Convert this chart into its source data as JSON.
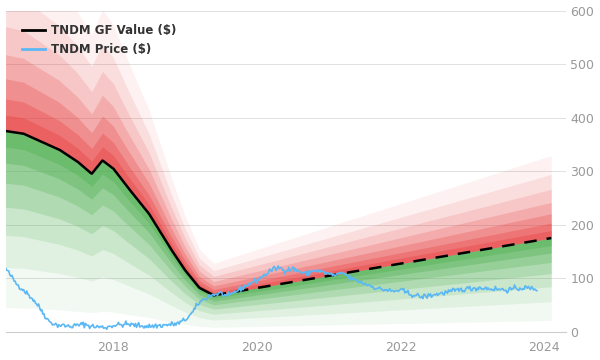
{
  "legend_labels": [
    "TNDM GF Value ($)",
    "TNDM Price ($)"
  ],
  "gf_line_color": "#000000",
  "gf_dashed_color": "#000000",
  "price_line_color": "#5bb8f5",
  "background_color": "#ffffff",
  "ylim": [
    0,
    600
  ],
  "yticks": [
    0,
    100,
    200,
    300,
    400,
    500,
    600
  ],
  "x_start_year": 2016.5,
  "x_end_year": 2024.3,
  "xtick_years": [
    2018,
    2020,
    2022,
    2024
  ],
  "red_color": "#e84040",
  "green_color": "#4caf50",
  "num_bands": 7,
  "band_width_pct": [
    0.08,
    0.16,
    0.26,
    0.38,
    0.52,
    0.68,
    0.88
  ],
  "band_alphas": [
    0.38,
    0.32,
    0.26,
    0.2,
    0.15,
    0.1,
    0.07
  ]
}
